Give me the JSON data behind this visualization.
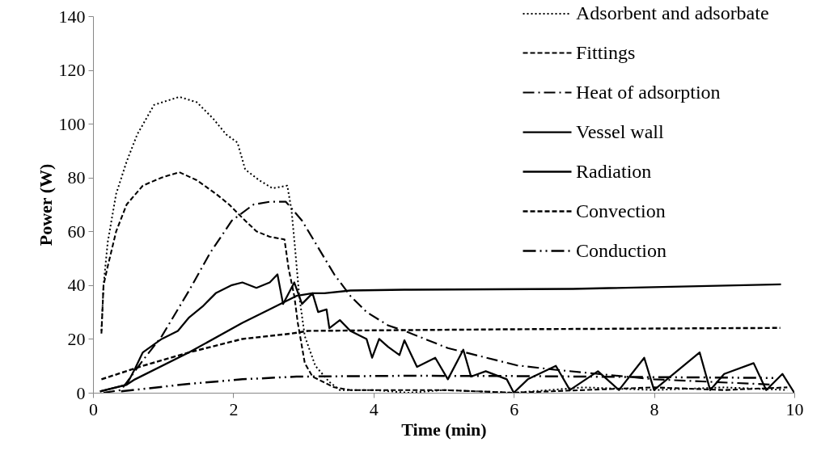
{
  "chart_data": {
    "type": "line",
    "xlabel": "Time (min)",
    "ylabel": "Power (W)",
    "xlim": [
      0,
      10
    ],
    "xticks": [
      0,
      2,
      4,
      6,
      8,
      10
    ],
    "ylim": [
      0,
      140
    ],
    "yticks": [
      0,
      20,
      40,
      60,
      80,
      100,
      120,
      140
    ],
    "grid": false,
    "legend": "top right",
    "series": [
      {
        "name": "Adsorbent and adsorbate",
        "color": "#000000",
        "line_style": "dotted",
        "x": [
          0.12,
          0.15,
          0.21,
          0.33,
          0.48,
          0.63,
          0.87,
          1.23,
          1.48,
          1.71,
          1.9,
          2.06,
          2.17,
          2.37,
          2.56,
          2.77,
          2.83,
          2.88,
          2.94,
          3.02,
          3.17,
          3.37,
          3.52,
          4,
          4.5,
          5,
          6,
          7,
          8,
          9,
          9.9
        ],
        "values": [
          23,
          40,
          56,
          74,
          86,
          96,
          107,
          110,
          108,
          102,
          96,
          93,
          83,
          79,
          76,
          77,
          68,
          54,
          36,
          21,
          10,
          4,
          1,
          1,
          0,
          1,
          0,
          2,
          1,
          2,
          1
        ]
      },
      {
        "name": "Fittings",
        "color": "#000000",
        "line_style": "dashed",
        "x": [
          0.12,
          0.15,
          0.21,
          0.33,
          0.48,
          0.71,
          0.98,
          1.23,
          1.48,
          1.75,
          1.94,
          2.13,
          2.33,
          2.52,
          2.73,
          2.79,
          2.87,
          2.92,
          3.02,
          3.13,
          3.44,
          3.67,
          4,
          5,
          6,
          7,
          8,
          9,
          9.9
        ],
        "values": [
          22,
          40,
          47,
          60,
          70,
          77,
          80,
          82,
          79,
          74,
          70,
          65,
          60,
          58,
          57,
          46,
          36,
          26,
          11,
          6,
          2,
          1,
          1,
          1,
          0,
          1,
          2,
          1,
          2
        ]
      },
      {
        "name": "Heat of adsorption",
        "color": "#000000",
        "line_style": "dashdot",
        "x": [
          0.15,
          0.4,
          0.71,
          0.98,
          1.37,
          1.67,
          1.98,
          2.29,
          2.52,
          2.75,
          2.98,
          3.21,
          3.44,
          3.67,
          3.9,
          4.21,
          4.44,
          5.06,
          6.04,
          6.61,
          8,
          9.7
        ],
        "values": [
          0,
          1,
          12,
          21,
          38,
          52,
          64,
          70,
          71,
          71,
          64,
          54,
          44,
          36,
          30,
          25,
          23,
          16.6,
          10.2,
          8.5,
          5,
          3
        ]
      },
      {
        "name": "Vessel wall",
        "color": "#000000",
        "line_style": "solid",
        "x": [
          0.1,
          0.48,
          0.6,
          0.71,
          0.98,
          1.21,
          1.37,
          1.56,
          1.75,
          1.98,
          2.13,
          2.33,
          2.52,
          2.63,
          2.71,
          2.87,
          2.98,
          3.13,
          3.21,
          3.33,
          3.37,
          3.52,
          3.67,
          3.9,
          3.98,
          4.08,
          4.21,
          4.37,
          4.44,
          4.62,
          4.88,
          5.06,
          5.28,
          5.39,
          5.6,
          5.9,
          6,
          6.2,
          6.6,
          6.8,
          7.2,
          7.5,
          7.86,
          8,
          8.65,
          8.8,
          9,
          9.42,
          9.6,
          9.83,
          10
        ],
        "values": [
          0.5,
          3,
          9,
          15,
          20,
          23,
          28,
          32,
          37,
          40,
          41,
          39,
          41,
          44,
          33,
          41,
          33,
          37,
          30,
          31,
          24,
          27,
          23,
          20,
          13,
          20,
          17,
          14,
          19.5,
          9.6,
          13,
          5,
          16,
          6,
          8,
          5,
          0,
          5,
          10,
          1,
          8,
          1,
          13,
          1,
          15,
          1,
          7,
          11,
          1,
          7,
          0
        ]
      },
      {
        "name": "Radiation",
        "color": "#000000",
        "line_style": "solid",
        "x": [
          0.1,
          0.48,
          0.6,
          1.37,
          2.13,
          2.52,
          2.9,
          3.13,
          3.3,
          3.67,
          4.44,
          6.84,
          9.81
        ],
        "values": [
          0.5,
          3,
          5,
          15,
          26,
          31,
          36,
          37,
          37,
          38,
          38.3,
          38.6,
          40.3
        ]
      },
      {
        "name": "Convection",
        "color": "#000000",
        "line_style": "dashed",
        "x": [
          0.12,
          0.71,
          1.37,
          2.13,
          2.83,
          3.06,
          6,
          9.8
        ],
        "values": [
          5,
          10,
          15,
          20,
          22,
          23,
          23.6,
          24.1
        ]
      },
      {
        "name": "Conduction",
        "color": "#000000",
        "line_style": "dashdotdot",
        "x": [
          0.4,
          0.56,
          1.37,
          2.13,
          2.9,
          4.44,
          6,
          8,
          9.7
        ],
        "values": [
          0.5,
          1,
          3.3,
          5,
          6,
          6.3,
          6.2,
          5.8,
          5.5
        ]
      }
    ]
  }
}
